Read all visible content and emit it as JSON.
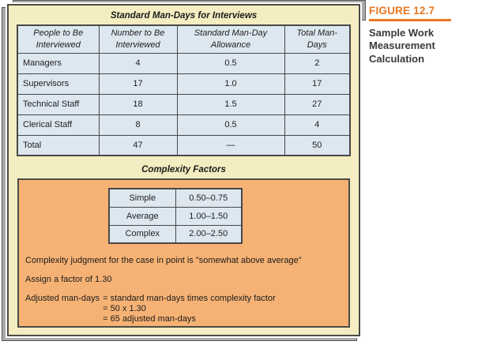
{
  "sidebar": {
    "figure_label": "FIGURE 12.7",
    "caption_lines": [
      "Sample Work",
      "Measurement",
      "Calculation"
    ]
  },
  "interviews": {
    "title": "Standard Man-Days for Interviews",
    "columns": [
      "People to Be Interviewed",
      "Number to Be Interviewed",
      "Standard Man-Day Allowance",
      "Total Man-Days"
    ],
    "rows": [
      [
        "Managers",
        "4",
        "0.5",
        "2"
      ],
      [
        "Supervisors",
        "17",
        "1.0",
        "17"
      ],
      [
        "Technical Staff",
        "18",
        "1.5",
        "27"
      ],
      [
        "Clerical Staff",
        "8",
        "0.5",
        "4"
      ],
      [
        "Total",
        "47",
        "—",
        "50"
      ]
    ]
  },
  "complexity": {
    "title": "Complexity Factors",
    "levels": [
      {
        "label": "Simple",
        "range": "0.50–0.75"
      },
      {
        "label": "Average",
        "range": "1.00–1.50"
      },
      {
        "label": "Complex",
        "range": "2.00–2.50"
      }
    ],
    "judgment": "Complexity judgment for the case in point is \"somewhat above average\"",
    "factor": "Assign a factor of 1.30",
    "adjusted_label": "Adjusted man-days",
    "adjusted_lines": [
      "= standard man-days times complexity factor",
      "= 50 x 1.30",
      "= 65 adjusted man-days"
    ]
  },
  "colors": {
    "accent_orange": "#e87722",
    "panel_yellow": "#f3edc1",
    "panel_orange": "#f6b274",
    "cell_blue": "#dde7f0",
    "border_dark": "#4c4c44"
  }
}
